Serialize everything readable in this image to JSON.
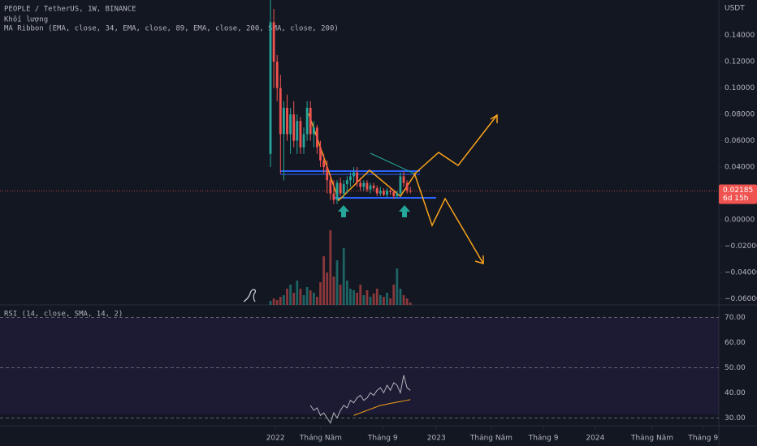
{
  "chart_data": {
    "type": "candlestick",
    "title": "PEOPLE / TetherUS, 1W, BINANCE",
    "subtitles": [
      "Khối lượng",
      "MA Ribbon (EMA, close, 34, EMA, close, 89, EMA, close, 200, SMA, close, 200)"
    ],
    "currency": "USDT",
    "up_color": "#26a69a",
    "down_color": "#ef5350",
    "x": [
      0,
      1,
      2,
      3,
      4,
      5,
      6,
      7,
      8,
      9,
      10,
      11,
      12,
      13,
      14,
      15,
      16,
      17,
      18,
      19,
      20,
      21,
      22,
      23,
      24,
      25,
      26,
      27,
      28,
      29,
      30,
      31,
      32,
      33,
      34,
      35,
      36,
      37,
      38,
      39,
      40,
      41,
      42
    ],
    "candles": [
      [
        0.05,
        0.168,
        0.04,
        0.15
      ],
      [
        0.15,
        0.16,
        0.1,
        0.12
      ],
      [
        0.12,
        0.125,
        0.09,
        0.1
      ],
      [
        0.1,
        0.11,
        0.035,
        0.065
      ],
      [
        0.065,
        0.09,
        0.03,
        0.085
      ],
      [
        0.085,
        0.095,
        0.06,
        0.065
      ],
      [
        0.065,
        0.085,
        0.05,
        0.08
      ],
      [
        0.08,
        0.09,
        0.055,
        0.06
      ],
      [
        0.06,
        0.08,
        0.05,
        0.075
      ],
      [
        0.075,
        0.078,
        0.05,
        0.055
      ],
      [
        0.055,
        0.07,
        0.05,
        0.065
      ],
      [
        0.065,
        0.09,
        0.06,
        0.085
      ],
      [
        0.085,
        0.09,
        0.06,
        0.065
      ],
      [
        0.065,
        0.075,
        0.055,
        0.07
      ],
      [
        0.07,
        0.072,
        0.05,
        0.055
      ],
      [
        0.055,
        0.06,
        0.04,
        0.045
      ],
      [
        0.045,
        0.05,
        0.035,
        0.04
      ],
      [
        0.04,
        0.045,
        0.02,
        0.03
      ],
      [
        0.03,
        0.035,
        0.015,
        0.02
      ],
      [
        0.02,
        0.03,
        0.012,
        0.015
      ],
      [
        0.015,
        0.03,
        0.012,
        0.028
      ],
      [
        0.028,
        0.032,
        0.018,
        0.02
      ],
      [
        0.02,
        0.03,
        0.016,
        0.027
      ],
      [
        0.027,
        0.033,
        0.02,
        0.03
      ],
      [
        0.03,
        0.036,
        0.025,
        0.033
      ],
      [
        0.033,
        0.04,
        0.028,
        0.036
      ],
      [
        0.036,
        0.04,
        0.025,
        0.028
      ],
      [
        0.028,
        0.032,
        0.022,
        0.025
      ],
      [
        0.025,
        0.03,
        0.022,
        0.028
      ],
      [
        0.028,
        0.03,
        0.021,
        0.023
      ],
      [
        0.023,
        0.028,
        0.02,
        0.026
      ],
      [
        0.026,
        0.028,
        0.022,
        0.024
      ],
      [
        0.024,
        0.026,
        0.018,
        0.02
      ],
      [
        0.02,
        0.025,
        0.018,
        0.022
      ],
      [
        0.022,
        0.024,
        0.018,
        0.019
      ],
      [
        0.019,
        0.024,
        0.017,
        0.022
      ],
      [
        0.022,
        0.025,
        0.019,
        0.021
      ],
      [
        0.021,
        0.023,
        0.016,
        0.018
      ],
      [
        0.018,
        0.022,
        0.016,
        0.02
      ],
      [
        0.02,
        0.036,
        0.019,
        0.033
      ],
      [
        0.033,
        0.037,
        0.025,
        0.028
      ],
      [
        0.028,
        0.03,
        0.02,
        0.022
      ],
      [
        0.022,
        0.025,
        0.02,
        0.02185
      ]
    ],
    "volume": [
      5,
      8,
      6,
      10,
      12,
      20,
      25,
      15,
      30,
      20,
      12,
      22,
      18,
      15,
      10,
      28,
      60,
      40,
      92,
      35,
      55,
      25,
      70,
      30,
      20,
      18,
      15,
      25,
      12,
      18,
      10,
      14,
      20,
      12,
      10,
      15,
      8,
      25,
      45,
      20,
      12,
      8,
      3
    ],
    "xlim": [
      -81.2,
      134.6
    ],
    "xticks": [
      {
        "value": 1.5,
        "label": "2022"
      },
      {
        "value": 15.1,
        "label": "Tháng Năm"
      },
      {
        "value": 33.7,
        "label": "Tháng 9"
      },
      {
        "value": 49.8,
        "label": "2023"
      },
      {
        "value": 66.3,
        "label": "Tháng Năm"
      },
      {
        "value": 81.95,
        "label": "Tháng 9"
      },
      {
        "value": 97.5,
        "label": "2024"
      },
      {
        "value": 114.6,
        "label": "Tháng Năm"
      },
      {
        "value": 129.9,
        "label": "Tháng 9"
      }
    ],
    "ylim": [
      -0.0646,
      0.1668
    ],
    "yticks": [
      {
        "value": 0.14,
        "label": "0.14000"
      },
      {
        "value": 0.12,
        "label": "0.12000"
      },
      {
        "value": 0.1,
        "label": "0.10000"
      },
      {
        "value": 0.08,
        "label": "0.08000"
      },
      {
        "value": 0.06,
        "label": "0.06000"
      },
      {
        "value": 0.04,
        "label": "0.04000"
      },
      {
        "value": 0,
        "label": "0.00000"
      },
      {
        "value": -0.02,
        "label": "−0.02000"
      },
      {
        "value": -0.04,
        "label": "−0.04000"
      },
      {
        "value": -0.06,
        "label": "−0.06000"
      }
    ],
    "last_price": 0.02185,
    "countdown": "6d 15h",
    "rsi_title": "RSI (14, close, SMA, 14, 2)",
    "rsi": [
      null,
      null,
      null,
      null,
      null,
      null,
      null,
      null,
      null,
      null,
      null,
      null,
      35,
      33,
      34,
      31,
      32,
      30,
      28,
      32,
      30,
      33,
      35,
      34,
      37,
      36,
      38,
      39,
      37,
      38,
      40,
      39,
      41,
      42,
      40,
      43,
      41,
      44,
      43,
      40,
      47,
      42,
      41
    ],
    "rsi_ma": [
      null,
      null,
      null,
      null,
      null,
      null,
      null,
      null,
      null,
      null,
      null,
      null,
      null,
      null,
      null,
      null,
      null,
      null,
      null,
      null,
      null,
      null,
      null,
      null,
      null,
      31,
      31.5,
      32,
      32.5,
      33,
      33.5,
      34,
      34.5,
      35,
      35.2,
      35.5,
      35.8,
      36,
      36.3,
      36.5,
      36.8,
      37,
      37.3
    ],
    "rsi_ylim": [
      74.97,
      26.9
    ],
    "rsi_yticks": [
      {
        "value": 70,
        "label": "70.00"
      },
      {
        "value": 60,
        "label": "60.00"
      },
      {
        "value": 50,
        "label": "50.00"
      },
      {
        "value": 40,
        "label": "40.00"
      },
      {
        "value": 30,
        "label": "30.00"
      }
    ],
    "rsi_color": "#b2b5be",
    "rsi_ma_color": "#f7a21b"
  }
}
